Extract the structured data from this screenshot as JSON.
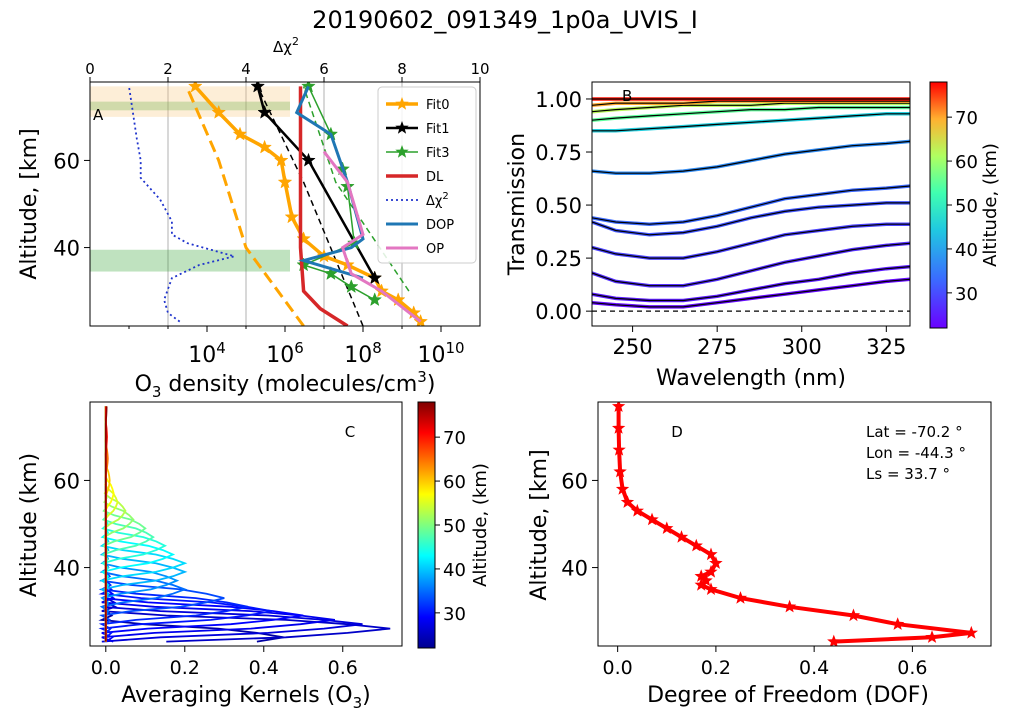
{
  "figure_title": "20190602_091349_1p0a_UVIS_I",
  "colorbar_label": "Altitude, (km)",
  "colorbar_ticks": [
    "30",
    "40",
    "50",
    "60",
    "70"
  ],
  "chart_data": [
    {
      "panel": "A",
      "type": "line",
      "xlabel": "O3 density (molecules/cm3)",
      "xscale": "log",
      "xlim": [
        10,
        100000000000.0
      ],
      "x_ticks": [
        "10^4",
        "10^6",
        "10^8",
        "10^10"
      ],
      "ylabel": "Altitude, [km]",
      "ylim": [
        22,
        78
      ],
      "y_ticks": [
        "40",
        "60"
      ],
      "top_axis_label": "Δχ2",
      "top_axis_lim": [
        0,
        10
      ],
      "top_axis_ticks": [
        "0",
        "2",
        "4",
        "6",
        "8",
        "10"
      ],
      "grid": "x",
      "legend_position": "top-right",
      "legend": [
        "Fit0",
        "Fit1",
        "Fit3",
        "DL",
        "Δχ2",
        "DOP",
        "OP"
      ],
      "series": [
        {
          "name": "Fit0",
          "color": "#ffa500",
          "marker": "star",
          "x": [
            3000000000.0,
            2000000000.0,
            800000000.0,
            300000000.0,
            200000000.0,
            40000000.0,
            10000000.0,
            3000000.0,
            1500000.0,
            1000000.0,
            800000.0,
            300000.0,
            70000.0,
            20000.0,
            5000.0
          ],
          "y": [
            23,
            25,
            28,
            30,
            33,
            36,
            38,
            42,
            47,
            55,
            60,
            63,
            66,
            71,
            77
          ]
        },
        {
          "name": "Fit1",
          "color": "#000000",
          "marker": "star",
          "x": [
            200000000.0,
            4000000.0,
            300000.0,
            200000.0
          ],
          "y": [
            33,
            60,
            71,
            77
          ]
        },
        {
          "name": "Fit3",
          "color": "#2ca02c",
          "marker": "star",
          "x": [
            200000000.0,
            50000000.0,
            15000000.0,
            3000000.0,
            60000000.0,
            40000000.0,
            30000000.0,
            15000000.0,
            4000000.0
          ],
          "y": [
            28,
            31,
            34,
            36,
            41,
            54,
            58,
            66,
            77
          ]
        },
        {
          "name": "DL",
          "color": "#d62728",
          "marker": "none",
          "x": [
            40000000.0,
            8000000.0,
            3000000.0,
            2500000.0,
            2500000.0,
            2500000.0
          ],
          "y": [
            22,
            26,
            30,
            40,
            60,
            77
          ]
        },
        {
          "name": "Δχ2",
          "color": "#1f33cc",
          "marker": "none",
          "axis": "top",
          "x": [
            2.3,
            2.0,
            1.9,
            2.1,
            2.8,
            3.7,
            2.5,
            2.1,
            2.1,
            1.8,
            1.3,
            1.3,
            1.2,
            1.0
          ],
          "y": [
            23,
            25,
            28,
            33,
            36,
            38,
            41,
            43,
            46,
            51,
            56,
            60,
            65,
            77
          ]
        },
        {
          "name": "DOP",
          "color": "#1f77b4",
          "marker": "none",
          "x": [
            100000000.0,
            3000000.0,
            50000000.0,
            100000000.0,
            40000000.0,
            15000000.0,
            2000000.0,
            4000000.0
          ],
          "y": [
            33,
            37,
            40,
            42,
            55,
            66,
            71,
            77
          ]
        },
        {
          "name": "OP",
          "color": "#e377c2",
          "marker": "none",
          "x": [
            3000000000.0,
            300000000.0,
            50000000.0,
            30000000.0,
            100000000.0,
            40000000.0,
            10000000.0
          ],
          "y": [
            23,
            30,
            34,
            40,
            43,
            55,
            62
          ]
        }
      ],
      "reference_lines": [
        {
          "style": "dashed",
          "color": "#ffa500",
          "x": [
            3000000.0,
            100000.0,
            20000.0,
            3000.0
          ],
          "y": [
            22,
            40,
            60,
            77
          ]
        },
        {
          "style": "dashed",
          "color": "#000000",
          "x": [
            100000000.0,
            3000000.0,
            200000.0
          ],
          "y": [
            22,
            55,
            77
          ]
        },
        {
          "style": "dashed",
          "color": "#2ca02c",
          "x": [
            1500000000.0,
            20000000.0,
            3000000.0
          ],
          "y": [
            30,
            55,
            77
          ]
        }
      ],
      "shaded_bands": [
        {
          "color": "#2ca02c",
          "y": [
            34.5,
            39.5
          ]
        },
        {
          "color": "#2ca02c",
          "y": [
            71.5,
            73.5
          ]
        },
        {
          "color": "#f7c77a",
          "y": [
            70,
            77
          ]
        }
      ]
    },
    {
      "panel": "B",
      "type": "line",
      "xlabel": "Wavelength (nm)",
      "xlim": [
        238,
        332
      ],
      "x_ticks": [
        "250",
        "275",
        "300",
        "325"
      ],
      "ylabel": "Transmission",
      "ylim": [
        -0.07,
        1.08
      ],
      "y_ticks": [
        "0.00",
        "0.25",
        "0.50",
        "0.75",
        "1.00"
      ],
      "reference_level": 0.0,
      "series_note": "one transmission spectrum per altitude level, colored by altitude",
      "x": [
        238,
        245,
        255,
        265,
        275,
        285,
        295,
        305,
        315,
        325,
        332
      ],
      "series": [
        {
          "altitude": 23,
          "values": [
            0.04,
            0.03,
            0.02,
            0.02,
            0.04,
            0.06,
            0.08,
            0.1,
            0.12,
            0.14,
            0.15
          ]
        },
        {
          "altitude": 25,
          "values": [
            0.08,
            0.06,
            0.05,
            0.05,
            0.07,
            0.1,
            0.13,
            0.15,
            0.18,
            0.2,
            0.21
          ]
        },
        {
          "altitude": 27,
          "values": [
            0.18,
            0.14,
            0.12,
            0.12,
            0.15,
            0.19,
            0.23,
            0.26,
            0.29,
            0.31,
            0.32
          ]
        },
        {
          "altitude": 29,
          "values": [
            0.3,
            0.27,
            0.25,
            0.25,
            0.28,
            0.32,
            0.36,
            0.38,
            0.4,
            0.41,
            0.41
          ]
        },
        {
          "altitude": 31,
          "values": [
            0.42,
            0.38,
            0.36,
            0.37,
            0.4,
            0.44,
            0.47,
            0.49,
            0.5,
            0.51,
            0.51
          ]
        },
        {
          "altitude": 33,
          "values": [
            0.44,
            0.42,
            0.41,
            0.42,
            0.45,
            0.49,
            0.53,
            0.55,
            0.57,
            0.58,
            0.59
          ]
        },
        {
          "altitude": 37,
          "values": [
            0.66,
            0.65,
            0.65,
            0.66,
            0.68,
            0.71,
            0.74,
            0.76,
            0.78,
            0.79,
            0.8
          ]
        },
        {
          "altitude": 45,
          "values": [
            0.85,
            0.85,
            0.86,
            0.87,
            0.88,
            0.89,
            0.9,
            0.91,
            0.92,
            0.93,
            0.93
          ]
        },
        {
          "altitude": 55,
          "values": [
            0.9,
            0.91,
            0.92,
            0.93,
            0.94,
            0.95,
            0.95,
            0.96,
            0.96,
            0.96,
            0.96
          ]
        },
        {
          "altitude": 62,
          "values": [
            0.94,
            0.95,
            0.96,
            0.97,
            0.97,
            0.97,
            0.98,
            0.98,
            0.98,
            0.98,
            0.98
          ]
        },
        {
          "altitude": 70,
          "values": [
            0.97,
            0.98,
            0.98,
            0.98,
            0.99,
            0.99,
            0.99,
            0.99,
            0.99,
            0.99,
            0.99
          ]
        },
        {
          "altitude": 77,
          "values": [
            1.0,
            1.0,
            1.0,
            1.0,
            1.0,
            1.0,
            1.0,
            1.0,
            1.0,
            1.0,
            1.0
          ]
        }
      ]
    },
    {
      "panel": "C",
      "type": "line",
      "xlabel": "Averaging Kernels (O3)",
      "xlim": [
        -0.04,
        0.75
      ],
      "x_ticks": [
        "0.0",
        "0.2",
        "0.4",
        "0.6"
      ],
      "ylabel": "Altitude (km)",
      "ylim": [
        22,
        78
      ],
      "y_ticks": [
        "40",
        "60"
      ],
      "series_note": "one averaging kernel per retrieval altitude, colored by altitude; peak value at that altitude",
      "kernels": [
        {
          "altitude": 24,
          "peak": 0.45
        },
        {
          "altitude": 26,
          "peak": 0.72
        },
        {
          "altitude": 27,
          "peak": 0.65
        },
        {
          "altitude": 28,
          "peak": 0.58
        },
        {
          "altitude": 29,
          "peak": 0.5
        },
        {
          "altitude": 30,
          "peak": 0.42
        },
        {
          "altitude": 31,
          "peak": 0.36
        },
        {
          "altitude": 33,
          "peak": 0.3
        },
        {
          "altitude": 35,
          "peak": 0.2
        },
        {
          "altitude": 37,
          "peak": 0.18
        },
        {
          "altitude": 39,
          "peak": 0.2
        },
        {
          "altitude": 41,
          "peak": 0.2
        },
        {
          "altitude": 43,
          "peak": 0.17
        },
        {
          "altitude": 45,
          "peak": 0.15
        },
        {
          "altitude": 47,
          "peak": 0.12
        },
        {
          "altitude": 49,
          "peak": 0.1
        },
        {
          "altitude": 51,
          "peak": 0.07
        },
        {
          "altitude": 53,
          "peak": 0.05
        },
        {
          "altitude": 55,
          "peak": 0.03
        },
        {
          "altitude": 57,
          "peak": 0.02
        },
        {
          "altitude": 60,
          "peak": 0.01
        },
        {
          "altitude": 65,
          "peak": 0.005
        },
        {
          "altitude": 70,
          "peak": 0.003
        },
        {
          "altitude": 77,
          "peak": 0.002
        }
      ]
    },
    {
      "panel": "D",
      "type": "line",
      "xlabel": "Degree of Freedom (DOF)",
      "xlim": [
        -0.04,
        0.76
      ],
      "x_ticks": [
        "0.0",
        "0.2",
        "0.4",
        "0.6"
      ],
      "ylabel": "Altitude, [km]",
      "ylim": [
        22,
        78
      ],
      "y_ticks": [
        "40",
        "60"
      ],
      "annotations": [
        "Lat = -70.2 °",
        "Lon = -44.3 °",
        "Ls = 33.7 °"
      ],
      "series": [
        {
          "name": "DOF",
          "color": "#ff0000",
          "marker": "star",
          "x": [
            0.44,
            0.64,
            0.72,
            0.57,
            0.48,
            0.35,
            0.25,
            0.19,
            0.17,
            0.18,
            0.17,
            0.19,
            0.2,
            0.19,
            0.16,
            0.13,
            0.1,
            0.07,
            0.04,
            0.02,
            0.01,
            0.005,
            0.003,
            0.002,
            0.002
          ],
          "y": [
            23,
            24,
            25,
            27,
            29,
            31,
            33,
            35,
            36,
            37,
            38,
            39,
            41,
            43,
            45,
            47,
            49,
            51,
            53,
            55,
            58,
            62,
            67,
            72,
            77
          ]
        }
      ]
    }
  ]
}
